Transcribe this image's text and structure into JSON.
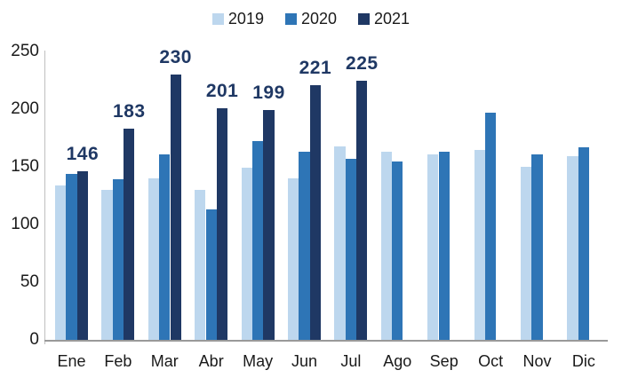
{
  "chart_data": {
    "type": "bar",
    "title": "",
    "xlabel": "",
    "ylabel": "",
    "categories": [
      "Ene",
      "Feb",
      "Mar",
      "Abr",
      "May",
      "Jun",
      "Jul",
      "Ago",
      "Sep",
      "Oct",
      "Nov",
      "Dic"
    ],
    "series": [
      {
        "name": "2019",
        "color": "#BDD7EE",
        "values": [
          134,
          130,
          140,
          130,
          149,
          140,
          168,
          163,
          161,
          165,
          150,
          159
        ],
        "data_labels": false
      },
      {
        "name": "2020",
        "color": "#2E75B6",
        "values": [
          144,
          139,
          161,
          113,
          172,
          163,
          157,
          155,
          163,
          197,
          161,
          167
        ],
        "data_labels": false
      },
      {
        "name": "2021",
        "color": "#1F3864",
        "values": [
          146,
          183,
          230,
          201,
          199,
          221,
          225,
          null,
          null,
          null,
          null,
          null
        ],
        "data_labels": true
      }
    ],
    "shown_data_labels": [
      146,
      183,
      230,
      201,
      199,
      221,
      225
    ],
    "ylim": [
      0,
      250
    ],
    "yticks": [
      0,
      50,
      100,
      150,
      200,
      250
    ],
    "grid": false,
    "legend_position": "top-center",
    "colors": {
      "data_label": "#1F3864",
      "axis_line": "#999999",
      "y_axis_line": "#BFBFBF",
      "text": "#1a1a1a",
      "background": "#ffffff"
    }
  }
}
